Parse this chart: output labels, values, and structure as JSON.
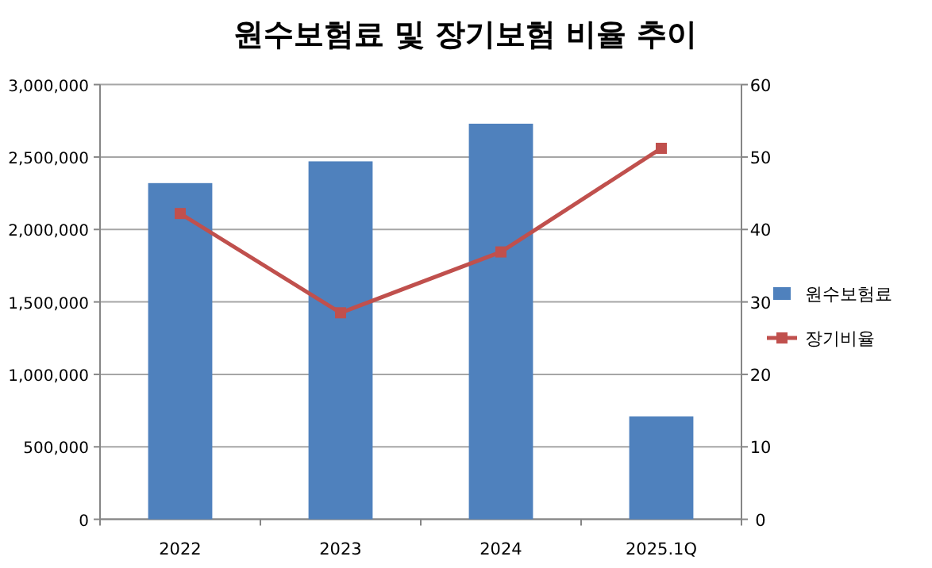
{
  "chart_data": {
    "type": "bar",
    "title": "원수보험료 및 장기보험 비율 추이",
    "categories": [
      "2022",
      "2023",
      "2024",
      "2025.1Q"
    ],
    "series": [
      {
        "name": "원수보험료",
        "color": "#4f81bd",
        "values": [
          2320000,
          2470000,
          2730000,
          710000
        ]
      },
      {
        "name": "장기비율",
        "type": "line",
        "axis": "y2",
        "color": "#c0504d",
        "marker": "square",
        "values": [
          42.2,
          28.5,
          36.9,
          51.2
        ]
      }
    ],
    "ylim": [
      0,
      3000000
    ],
    "yticks": [
      {
        "value": 0,
        "label": "0"
      },
      {
        "value": 500000,
        "label": "500,000"
      },
      {
        "value": 1000000,
        "label": "1,000,000"
      },
      {
        "value": 1500000,
        "label": "1,500,000"
      },
      {
        "value": 2000000,
        "label": "2,000,000"
      },
      {
        "value": 2500000,
        "label": "2,500,000"
      },
      {
        "value": 3000000,
        "label": "3,000,000"
      }
    ],
    "y2lim": [
      0,
      60
    ],
    "y2ticks": [
      0,
      10,
      20,
      30,
      40,
      50,
      60
    ],
    "grid": "y",
    "legend": "right"
  }
}
